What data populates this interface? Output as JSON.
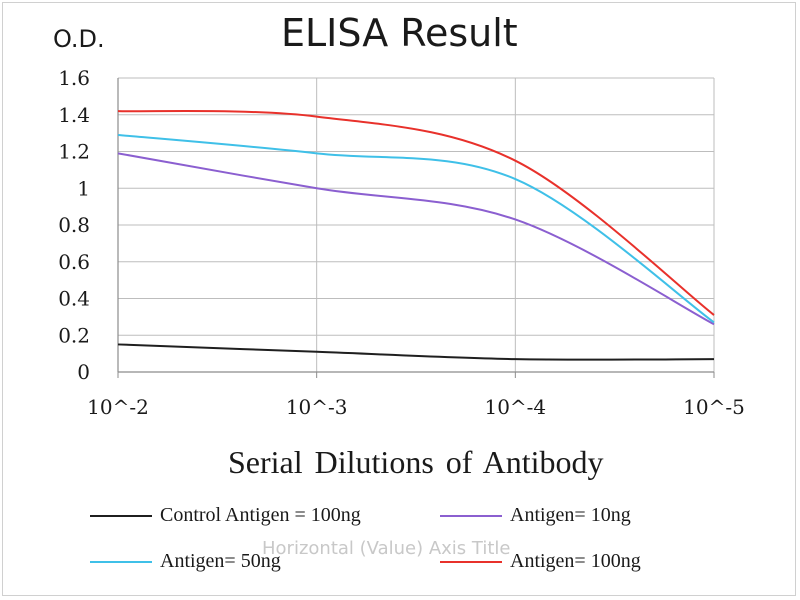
{
  "chart_data": {
    "type": "line",
    "title": "ELISA Result",
    "ylabel": "O.D.",
    "xlabel": "Serial Dilutions  of Antibody",
    "ghost_axis_title": "Horizontal (Value) Axis Title",
    "x": [
      0,
      1,
      2,
      3
    ],
    "x_ticks": [
      "10^-2",
      "10^-3",
      "10^-4",
      "10^-5"
    ],
    "y_ticks": [
      "0",
      "0.2",
      "0.4",
      "0.6",
      "0.8",
      "1",
      "1.2",
      "1.4",
      "1.6"
    ],
    "ylim": [
      0,
      1.6
    ],
    "grid": true,
    "legend_position": "bottom",
    "series": [
      {
        "name": "Control Antigen = 100ng",
        "color": "#1f1f1f",
        "values": [
          0.15,
          0.11,
          0.07,
          0.07
        ]
      },
      {
        "name": "Antigen= 10ng",
        "color": "#8b5fd0",
        "values": [
          1.19,
          1.0,
          0.83,
          0.26
        ]
      },
      {
        "name": "Antigen= 50ng",
        "color": "#3fc0e8",
        "values": [
          1.29,
          1.19,
          1.05,
          0.27
        ]
      },
      {
        "name": "Antigen= 100ng",
        "color": "#e8312b",
        "values": [
          1.42,
          1.39,
          1.15,
          0.31
        ]
      }
    ]
  }
}
